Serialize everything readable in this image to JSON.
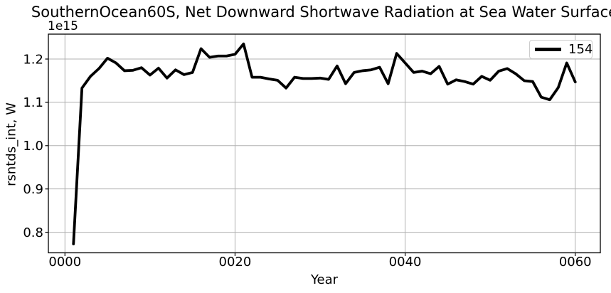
{
  "chart_data": {
    "type": "line",
    "title": "SouthernOcean60S, Net Downward Shortwave Radiation at Sea Water Surface",
    "xlabel": "Year",
    "ylabel": "rsntds_int, W",
    "offset_text": "1e15",
    "x": [
      1,
      2,
      3,
      4,
      5,
      6,
      7,
      8,
      9,
      10,
      11,
      12,
      13,
      14,
      15,
      16,
      17,
      18,
      19,
      20,
      21,
      22,
      23,
      24,
      25,
      26,
      27,
      28,
      29,
      30,
      31,
      32,
      33,
      34,
      35,
      36,
      37,
      38,
      39,
      40,
      41,
      42,
      43,
      44,
      45,
      46,
      47,
      48,
      49,
      50,
      51,
      52,
      53,
      54,
      55,
      56,
      57,
      58,
      59,
      60
    ],
    "series": [
      {
        "name": "154",
        "color": "#000000",
        "linewidth": 3.8,
        "values": [
          0.773,
          1.133,
          1.16,
          1.178,
          1.202,
          1.191,
          1.173,
          1.174,
          1.18,
          1.163,
          1.179,
          1.156,
          1.175,
          1.164,
          1.169,
          1.224,
          1.204,
          1.207,
          1.207,
          1.211,
          1.235,
          1.158,
          1.158,
          1.154,
          1.151,
          1.133,
          1.158,
          1.155,
          1.155,
          1.156,
          1.153,
          1.184,
          1.143,
          1.169,
          1.173,
          1.175,
          1.181,
          1.143,
          1.213,
          1.191,
          1.169,
          1.172,
          1.166,
          1.183,
          1.142,
          1.152,
          1.148,
          1.142,
          1.16,
          1.151,
          1.172,
          1.178,
          1.166,
          1.15,
          1.148,
          1.112,
          1.106,
          1.134,
          1.191,
          1.147
        ]
      }
    ],
    "xticks": {
      "values": [
        0,
        20,
        40,
        60
      ],
      "labels": [
        "0000",
        "0020",
        "0040",
        "0060"
      ]
    },
    "yticks": {
      "values": [
        0.8,
        0.9,
        1.0,
        1.1,
        1.2
      ],
      "labels": [
        "0.8",
        "0.9",
        "1.0",
        "1.1",
        "1.2"
      ]
    },
    "xlim": [
      -1.95,
      62.95
    ],
    "ylim": [
      0.7525,
      1.2575
    ],
    "grid": true,
    "legend_position": "upper right",
    "colors": {
      "line": "#000000",
      "grid": "#b0b0b0",
      "spine": "#000000",
      "text": "#000000",
      "legend_border": "#cccccc",
      "background": "#ffffff"
    }
  }
}
